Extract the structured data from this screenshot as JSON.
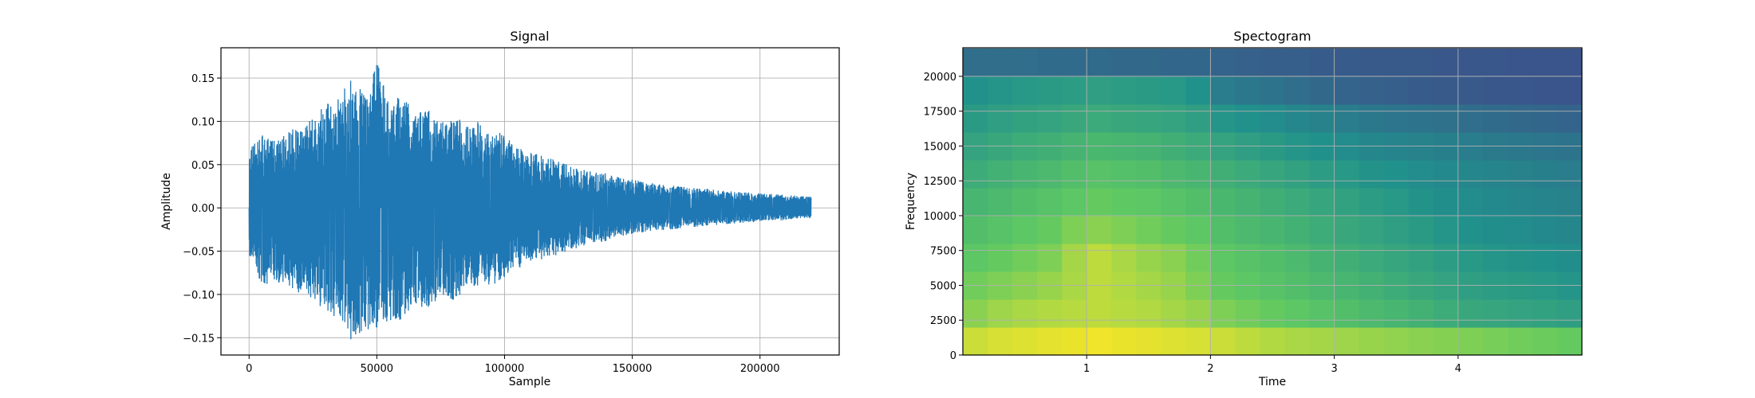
{
  "chart_data": [
    {
      "type": "line",
      "title": "Signal",
      "xlabel": "Sample",
      "ylabel": "Amplitude",
      "xlim": [
        -11000,
        231000
      ],
      "ylim": [
        -0.17,
        0.185
      ],
      "xticks": [
        0,
        50000,
        100000,
        150000,
        200000
      ],
      "xtick_labels": [
        "0",
        "50000",
        "100000",
        "150000",
        "200000"
      ],
      "yticks": [
        -0.15,
        -0.1,
        -0.05,
        0.0,
        0.05,
        0.1,
        0.15
      ],
      "ytick_labels": [
        "−0.15",
        "−0.10",
        "−0.05",
        "0.00",
        "0.05",
        "0.10",
        "0.15"
      ],
      "grid": true,
      "color": "#1f77b4",
      "series": [
        {
          "x": [
            0,
            5000,
            10000,
            15000,
            20000,
            25000,
            30000,
            35000,
            40000,
            45000,
            50000,
            55000,
            60000,
            65000,
            70000,
            75000,
            80000,
            85000,
            90000,
            95000,
            100000,
            105000,
            110000,
            115000,
            120000,
            125000,
            130000,
            135000,
            140000,
            145000,
            150000,
            155000,
            160000,
            165000,
            170000,
            175000,
            180000,
            185000,
            190000,
            195000,
            200000,
            205000,
            210000,
            215000,
            220000
          ],
          "upper": [
            0.07,
            0.085,
            0.078,
            0.09,
            0.095,
            0.105,
            0.12,
            0.13,
            0.15,
            0.135,
            0.17,
            0.12,
            0.14,
            0.11,
            0.115,
            0.1,
            0.11,
            0.095,
            0.1,
            0.09,
            0.085,
            0.07,
            0.065,
            0.06,
            0.055,
            0.05,
            0.045,
            0.042,
            0.04,
            0.035,
            0.033,
            0.03,
            0.028,
            0.026,
            0.025,
            0.023,
            0.022,
            0.02,
            0.019,
            0.018,
            0.017,
            0.016,
            0.015,
            0.014,
            0.013
          ],
          "lower": [
            -0.06,
            -0.09,
            -0.085,
            -0.09,
            -0.1,
            -0.105,
            -0.12,
            -0.13,
            -0.155,
            -0.14,
            -0.145,
            -0.13,
            -0.13,
            -0.11,
            -0.12,
            -0.1,
            -0.11,
            -0.095,
            -0.09,
            -0.09,
            -0.08,
            -0.07,
            -0.065,
            -0.06,
            -0.055,
            -0.05,
            -0.045,
            -0.042,
            -0.038,
            -0.033,
            -0.03,
            -0.028,
            -0.026,
            -0.025,
            -0.023,
            -0.022,
            -0.021,
            -0.019,
            -0.018,
            -0.017,
            -0.016,
            -0.015,
            -0.014,
            -0.013,
            -0.012
          ]
        }
      ]
    },
    {
      "type": "heatmap",
      "title": "Spectogram",
      "xlabel": "Time",
      "ylabel": "Frequency",
      "xlim": [
        0,
        5.0
      ],
      "ylim": [
        0,
        22050
      ],
      "xticks": [
        1,
        2,
        3,
        4
      ],
      "xtick_labels": [
        "1",
        "2",
        "3",
        "4"
      ],
      "yticks": [
        0,
        2500,
        5000,
        7500,
        10000,
        12500,
        15000,
        17500,
        20000
      ],
      "ytick_labels": [
        "0",
        "2500",
        "5000",
        "7500",
        "10000",
        "12500",
        "15000",
        "17500",
        "20000"
      ],
      "grid": true,
      "colormap": "viridis",
      "time": [
        0.1,
        0.3,
        0.5,
        0.7,
        0.9,
        1.1,
        1.3,
        1.5,
        1.7,
        1.9,
        2.1,
        2.3,
        2.5,
        2.7,
        2.9,
        3.1,
        3.3,
        3.5,
        3.7,
        3.9,
        4.1,
        4.3,
        4.5,
        4.7,
        4.9
      ],
      "frequency": [
        1000,
        3000,
        5000,
        7000,
        9000,
        11000,
        13000,
        15000,
        17000,
        19000,
        21000
      ],
      "intensity": [
        [
          0.92,
          0.94,
          0.95,
          0.96,
          0.97,
          0.98,
          0.97,
          0.96,
          0.95,
          0.94,
          0.92,
          0.9,
          0.88,
          0.87,
          0.86,
          0.85,
          0.84,
          0.83,
          0.82,
          0.81,
          0.8,
          0.79,
          0.78,
          0.77,
          0.76
        ],
        [
          0.82,
          0.85,
          0.87,
          0.88,
          0.89,
          0.9,
          0.89,
          0.88,
          0.86,
          0.84,
          0.8,
          0.78,
          0.76,
          0.74,
          0.72,
          0.7,
          0.68,
          0.66,
          0.64,
          0.62,
          0.6,
          0.59,
          0.58,
          0.57,
          0.56
        ],
        [
          0.78,
          0.8,
          0.82,
          0.84,
          0.87,
          0.9,
          0.88,
          0.86,
          0.84,
          0.8,
          0.76,
          0.74,
          0.72,
          0.7,
          0.68,
          0.66,
          0.64,
          0.62,
          0.6,
          0.58,
          0.56,
          0.55,
          0.54,
          0.53,
          0.52
        ],
        [
          0.74,
          0.76,
          0.78,
          0.8,
          0.86,
          0.9,
          0.87,
          0.84,
          0.82,
          0.78,
          0.74,
          0.72,
          0.7,
          0.68,
          0.65,
          0.63,
          0.61,
          0.59,
          0.57,
          0.55,
          0.53,
          0.52,
          0.51,
          0.5,
          0.49
        ],
        [
          0.7,
          0.72,
          0.74,
          0.76,
          0.8,
          0.82,
          0.8,
          0.78,
          0.76,
          0.74,
          0.7,
          0.68,
          0.66,
          0.64,
          0.62,
          0.6,
          0.58,
          0.56,
          0.54,
          0.52,
          0.5,
          0.49,
          0.48,
          0.47,
          0.46
        ],
        [
          0.66,
          0.68,
          0.7,
          0.72,
          0.74,
          0.76,
          0.75,
          0.74,
          0.72,
          0.7,
          0.67,
          0.65,
          0.63,
          0.61,
          0.59,
          0.57,
          0.55,
          0.53,
          0.51,
          0.49,
          0.48,
          0.47,
          0.46,
          0.45,
          0.44
        ],
        [
          0.62,
          0.64,
          0.66,
          0.68,
          0.7,
          0.72,
          0.71,
          0.7,
          0.68,
          0.66,
          0.63,
          0.61,
          0.59,
          0.57,
          0.55,
          0.53,
          0.51,
          0.5,
          0.48,
          0.47,
          0.46,
          0.45,
          0.44,
          0.43,
          0.42
        ],
        [
          0.58,
          0.6,
          0.62,
          0.63,
          0.65,
          0.67,
          0.66,
          0.65,
          0.63,
          0.61,
          0.58,
          0.56,
          0.54,
          0.52,
          0.5,
          0.48,
          0.46,
          0.45,
          0.44,
          0.43,
          0.42,
          0.41,
          0.4,
          0.39,
          0.38
        ],
        [
          0.54,
          0.56,
          0.57,
          0.58,
          0.6,
          0.61,
          0.6,
          0.59,
          0.58,
          0.56,
          0.52,
          0.5,
          0.48,
          0.46,
          0.44,
          0.42,
          0.4,
          0.39,
          0.38,
          0.37,
          0.36,
          0.35,
          0.34,
          0.33,
          0.32
        ],
        [
          0.5,
          0.52,
          0.53,
          0.54,
          0.55,
          0.56,
          0.55,
          0.54,
          0.53,
          0.5,
          0.42,
          0.4,
          0.38,
          0.36,
          0.34,
          0.32,
          0.31,
          0.3,
          0.29,
          0.28,
          0.28,
          0.27,
          0.27,
          0.26,
          0.26
        ],
        [
          0.36,
          0.36,
          0.36,
          0.35,
          0.35,
          0.35,
          0.34,
          0.34,
          0.33,
          0.33,
          0.32,
          0.31,
          0.3,
          0.3,
          0.29,
          0.29,
          0.28,
          0.28,
          0.28,
          0.27,
          0.27,
          0.27,
          0.26,
          0.26,
          0.26
        ]
      ]
    }
  ]
}
